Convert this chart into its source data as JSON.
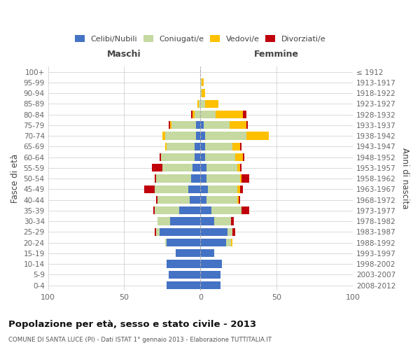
{
  "age_groups": [
    "0-4",
    "5-9",
    "10-14",
    "15-19",
    "20-24",
    "25-29",
    "30-34",
    "35-39",
    "40-44",
    "45-49",
    "50-54",
    "55-59",
    "60-64",
    "65-69",
    "70-74",
    "75-79",
    "80-84",
    "85-89",
    "90-94",
    "95-99",
    "100+"
  ],
  "birth_years": [
    "2008-2012",
    "2003-2007",
    "1998-2002",
    "1993-1997",
    "1988-1992",
    "1983-1987",
    "1978-1982",
    "1973-1977",
    "1968-1972",
    "1963-1967",
    "1958-1962",
    "1953-1957",
    "1948-1952",
    "1943-1947",
    "1938-1942",
    "1933-1937",
    "1928-1932",
    "1923-1927",
    "1918-1922",
    "1913-1917",
    "≤ 1912"
  ],
  "males": {
    "celibi": [
      22,
      21,
      22,
      16,
      22,
      27,
      20,
      14,
      7,
      8,
      6,
      5,
      4,
      4,
      3,
      3,
      0,
      0,
      0,
      0,
      0
    ],
    "coniugati": [
      0,
      0,
      0,
      0,
      1,
      2,
      8,
      16,
      21,
      22,
      23,
      20,
      22,
      18,
      20,
      16,
      4,
      1,
      0,
      0,
      0
    ],
    "vedovi": [
      0,
      0,
      0,
      0,
      0,
      0,
      0,
      0,
      0,
      0,
      0,
      0,
      0,
      1,
      2,
      1,
      1,
      1,
      0,
      0,
      0
    ],
    "divorziati": [
      0,
      0,
      0,
      0,
      0,
      1,
      0,
      1,
      1,
      7,
      1,
      7,
      1,
      0,
      0,
      1,
      1,
      0,
      0,
      0,
      0
    ]
  },
  "females": {
    "nubili": [
      13,
      13,
      14,
      9,
      17,
      18,
      9,
      7,
      4,
      5,
      4,
      4,
      3,
      3,
      3,
      2,
      0,
      0,
      0,
      0,
      0
    ],
    "coniugate": [
      0,
      0,
      0,
      0,
      3,
      3,
      11,
      20,
      20,
      19,
      22,
      20,
      20,
      18,
      27,
      17,
      10,
      3,
      1,
      1,
      0
    ],
    "vedove": [
      0,
      0,
      0,
      0,
      1,
      0,
      0,
      0,
      1,
      2,
      1,
      2,
      5,
      5,
      15,
      11,
      18,
      9,
      2,
      1,
      0
    ],
    "divorziate": [
      0,
      0,
      0,
      0,
      0,
      2,
      2,
      5,
      1,
      2,
      5,
      1,
      1,
      1,
      0,
      1,
      2,
      0,
      0,
      0,
      0
    ]
  },
  "colors": {
    "celibi": "#4472c4",
    "coniugati": "#c5d9a0",
    "vedovi": "#ffc000",
    "divorziati": "#c0000b"
  },
  "xlim": 100,
  "title": "Popolazione per età, sesso e stato civile - 2013",
  "subtitle": "COMUNE DI SANTA LUCE (PI) - Dati ISTAT 1° gennaio 2013 - Elaborazione TUTTITALIA.IT",
  "ylabel_left": "Fasce di età",
  "ylabel_right": "Anni di nascita",
  "xlabel_left": "Maschi",
  "xlabel_right": "Femmine",
  "bg_color": "#ffffff",
  "grid_color": "#cccccc"
}
